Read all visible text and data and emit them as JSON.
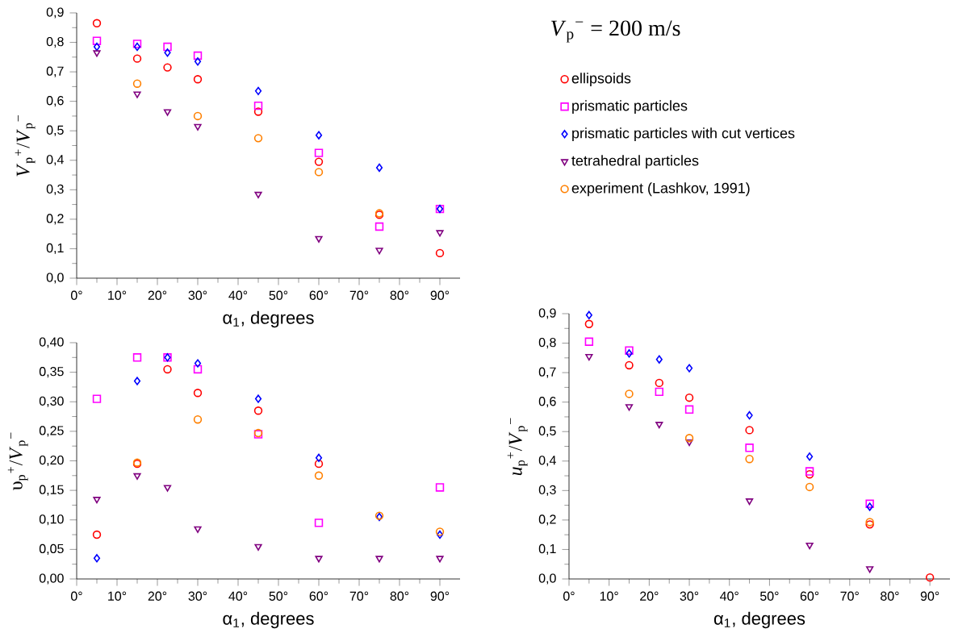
{
  "chart_data": [
    {
      "type": "scatter",
      "xlabel": "α$_{1}$,  degrees",
      "ylabel": "*V*$_{p}$$^{+}$/*V*$_{p}$$^{−}$",
      "annotations": [
        "*V*$_{p}$$^{−}$ = 200 m/s"
      ],
      "x": [
        5,
        15,
        22.5,
        30,
        45,
        60,
        75,
        90
      ],
      "xlim": [
        0,
        95
      ],
      "xticks": [
        {
          "value": 0,
          "label": "0°"
        },
        {
          "value": 10,
          "label": "10°"
        },
        {
          "value": 20,
          "label": "20°"
        },
        {
          "value": 30,
          "label": "30°"
        },
        {
          "value": 40,
          "label": "40°"
        },
        {
          "value": 50,
          "label": "50°"
        },
        {
          "value": 60,
          "label": "60°"
        },
        {
          "value": 70,
          "label": "70°"
        },
        {
          "value": 80,
          "label": "80°"
        },
        {
          "value": 90,
          "label": "90°"
        }
      ],
      "ylim": [
        0,
        0.9
      ],
      "yticks": [
        {
          "value": 0,
          "label": "0,0"
        },
        {
          "value": 0.1,
          "label": "0,1"
        },
        {
          "value": 0.2,
          "label": "0,2"
        },
        {
          "value": 0.3,
          "label": "0,3"
        },
        {
          "value": 0.4,
          "label": "0,4"
        },
        {
          "value": 0.5,
          "label": "0,5"
        },
        {
          "value": 0.6,
          "label": "0,6"
        },
        {
          "value": 0.7,
          "label": "0,7"
        },
        {
          "value": 0.8,
          "label": "0,8"
        },
        {
          "value": 0.9,
          "label": "0,9"
        }
      ],
      "legend": "right",
      "series": [
        {
          "name": "ellipsoids",
          "color": "#ff0000",
          "marker": "circle",
          "values": [
            0.865,
            0.745,
            0.715,
            0.675,
            0.565,
            0.395,
            0.215,
            0.085
          ]
        },
        {
          "name": "prismatic particles",
          "color": "#ff00ff",
          "marker": "square",
          "values": [
            0.805,
            0.795,
            0.785,
            0.755,
            0.585,
            0.425,
            0.175,
            0.235
          ]
        },
        {
          "name": "prismatic particles with cut vertices",
          "color": "#0000ff",
          "marker": "diamond",
          "values": [
            0.785,
            0.785,
            0.765,
            0.735,
            0.635,
            0.485,
            0.375,
            0.235
          ]
        },
        {
          "name": "tetrahedral particles",
          "color": "#800080",
          "marker": "triangle",
          "values": [
            0.765,
            0.625,
            0.565,
            0.515,
            0.285,
            0.135,
            0.095,
            0.155
          ]
        },
        {
          "name": "experiment  (Lashkov,  1991)",
          "color": "#ff8000",
          "marker": "circle",
          "x": [
            15,
            30,
            45,
            60,
            75
          ],
          "values": [
            0.66,
            0.55,
            0.475,
            0.36,
            0.22
          ]
        }
      ]
    },
    {
      "type": "scatter",
      "xlabel": "α$_{1}$,  degrees",
      "ylabel": "υ$_{p}$$^{+}$/*V*$_{p}$$^{−}$",
      "x": [
        5,
        15,
        22.5,
        30,
        45,
        60,
        75,
        90
      ],
      "xlim": [
        0,
        95
      ],
      "xticks": [
        {
          "value": 0,
          "label": "0°"
        },
        {
          "value": 10,
          "label": "10°"
        },
        {
          "value": 20,
          "label": "20°"
        },
        {
          "value": 30,
          "label": "30°"
        },
        {
          "value": 40,
          "label": "40°"
        },
        {
          "value": 50,
          "label": "50°"
        },
        {
          "value": 60,
          "label": "60°"
        },
        {
          "value": 70,
          "label": "70°"
        },
        {
          "value": 80,
          "label": "80°"
        },
        {
          "value": 90,
          "label": "90°"
        }
      ],
      "ylim": [
        0,
        0.4
      ],
      "yticks": [
        {
          "value": 0,
          "label": "0,00"
        },
        {
          "value": 0.05,
          "label": "0,05"
        },
        {
          "value": 0.1,
          "label": "0,10"
        },
        {
          "value": 0.15,
          "label": "0,15"
        },
        {
          "value": 0.2,
          "label": "0,20"
        },
        {
          "value": 0.25,
          "label": "0,25"
        },
        {
          "value": 0.3,
          "label": "0,30"
        },
        {
          "value": 0.35,
          "label": "0,35"
        },
        {
          "value": 0.4,
          "label": "0,40"
        }
      ],
      "series": [
        {
          "color": "#ff0000",
          "marker": "circle",
          "values": [
            0.075,
            0.195,
            0.355,
            0.315,
            0.285,
            0.195,
            null,
            null
          ]
        },
        {
          "color": "#ff00ff",
          "marker": "square",
          "values": [
            0.305,
            0.375,
            0.375,
            0.355,
            0.245,
            0.095,
            null,
            0.155
          ]
        },
        {
          "color": "#0000ff",
          "marker": "diamond",
          "values": [
            0.035,
            0.335,
            0.375,
            0.365,
            0.305,
            0.205,
            0.105,
            0.075
          ]
        },
        {
          "color": "#800080",
          "marker": "triangle",
          "values": [
            0.135,
            0.175,
            0.155,
            0.085,
            0.055,
            0.035,
            0.035,
            0.035
          ]
        },
        {
          "color": "#ff8000",
          "marker": "circle",
          "x": [
            15,
            30,
            45,
            60,
            75,
            90
          ],
          "values": [
            0.197,
            0.27,
            0.247,
            0.175,
            0.107,
            0.08
          ]
        }
      ]
    },
    {
      "type": "scatter",
      "xlabel": "α$_{1}$,  degrees",
      "ylabel": "*u*$_{p}$$^{+}$/*V*$_{p}$$^{−}$",
      "x": [
        5,
        15,
        22.5,
        30,
        45,
        60,
        75,
        90
      ],
      "xlim": [
        0,
        95
      ],
      "xticks": [
        {
          "value": 0,
          "label": "0°"
        },
        {
          "value": 10,
          "label": "10°"
        },
        {
          "value": 20,
          "label": "20°"
        },
        {
          "value": 30,
          "label": "30°"
        },
        {
          "value": 40,
          "label": "40°"
        },
        {
          "value": 50,
          "label": "50°"
        },
        {
          "value": 60,
          "label": "60°"
        },
        {
          "value": 70,
          "label": "70°"
        },
        {
          "value": 80,
          "label": "80°"
        },
        {
          "value": 90,
          "label": "90°"
        }
      ],
      "ylim": [
        0,
        0.9
      ],
      "yticks": [
        {
          "value": 0,
          "label": "0,0"
        },
        {
          "value": 0.1,
          "label": "0,1"
        },
        {
          "value": 0.2,
          "label": "0,2"
        },
        {
          "value": 0.3,
          "label": "0,3"
        },
        {
          "value": 0.4,
          "label": "0,4"
        },
        {
          "value": 0.5,
          "label": "0,5"
        },
        {
          "value": 0.6,
          "label": "0,6"
        },
        {
          "value": 0.7,
          "label": "0,7"
        },
        {
          "value": 0.8,
          "label": "0,8"
        },
        {
          "value": 0.9,
          "label": "0,9"
        }
      ],
      "series": [
        {
          "color": "#ff0000",
          "marker": "circle",
          "values": [
            0.865,
            0.725,
            0.665,
            0.615,
            0.505,
            0.355,
            0.185,
            0.005
          ]
        },
        {
          "color": "#ff00ff",
          "marker": "square",
          "values": [
            0.805,
            0.775,
            0.635,
            0.575,
            0.445,
            0.365,
            0.255,
            null
          ]
        },
        {
          "color": "#0000ff",
          "marker": "diamond",
          "values": [
            0.895,
            0.765,
            0.745,
            0.715,
            0.555,
            0.415,
            0.245,
            null
          ]
        },
        {
          "color": "#800080",
          "marker": "triangle",
          "values": [
            0.755,
            0.585,
            0.525,
            0.465,
            0.265,
            0.115,
            0.035,
            null
          ]
        },
        {
          "color": "#ff8000",
          "marker": "circle",
          "x": [
            15,
            30,
            45,
            60,
            75
          ],
          "values": [
            0.628,
            0.478,
            0.407,
            0.312,
            0.193
          ]
        }
      ]
    }
  ]
}
